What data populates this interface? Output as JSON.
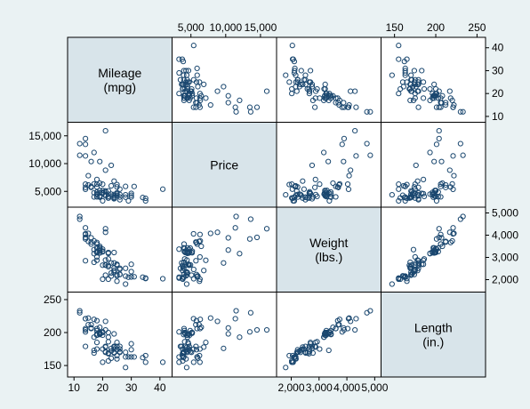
{
  "chart_data": {
    "type": "scatter",
    "variables": [
      {
        "key": "mpg",
        "label": [
          "Mileage",
          "(mpg)"
        ],
        "range": [
          9,
          43
        ],
        "ticks": [
          {
            "v": 10,
            "t": "10"
          },
          {
            "v": 20,
            "t": "20"
          },
          {
            "v": 30,
            "t": "30"
          },
          {
            "v": 40,
            "t": "40"
          }
        ]
      },
      {
        "key": "price",
        "label": [
          "Price"
        ],
        "range": [
          2800,
          16800
        ],
        "ticks": [
          {
            "v": 5000,
            "t": "5,000"
          },
          {
            "v": 10000,
            "t": "10,000"
          },
          {
            "v": 15000,
            "t": "15,000"
          }
        ]
      },
      {
        "key": "weight",
        "label": [
          "Weight",
          "(lbs.)"
        ],
        "range": [
          1600,
          5100
        ],
        "ticks": [
          {
            "v": 2000,
            "t": "2,000"
          },
          {
            "v": 3000,
            "t": "3,000"
          },
          {
            "v": 4000,
            "t": "4,000"
          },
          {
            "v": 5000,
            "t": "5,000"
          }
        ]
      },
      {
        "key": "length",
        "label": [
          "Length",
          "(in.)"
        ],
        "range": [
          138,
          256
        ],
        "ticks": [
          {
            "v": 150,
            "t": "150"
          },
          {
            "v": 200,
            "t": "200"
          },
          {
            "v": 250,
            "t": "250"
          }
        ]
      }
    ],
    "observations": [
      [
        22,
        4099,
        2930,
        186
      ],
      [
        17,
        4749,
        3350,
        173
      ],
      [
        22,
        3799,
        2640,
        168
      ],
      [
        20,
        4816,
        3250,
        196
      ],
      [
        15,
        7827,
        4080,
        222
      ],
      [
        18,
        5788,
        3670,
        218
      ],
      [
        26,
        4453,
        2230,
        170
      ],
      [
        20,
        5189,
        3280,
        200
      ],
      [
        16,
        10372,
        3880,
        207
      ],
      [
        19,
        4082,
        3400,
        200
      ],
      [
        14,
        11385,
        4330,
        221
      ],
      [
        14,
        14500,
        3900,
        204
      ],
      [
        21,
        15906,
        4290,
        204
      ],
      [
        29,
        3299,
        2110,
        163
      ],
      [
        16,
        5705,
        3690,
        212
      ],
      [
        22,
        4504,
        3180,
        193
      ],
      [
        22,
        5104,
        3220,
        200
      ],
      [
        24,
        3667,
        2750,
        179
      ],
      [
        19,
        3955,
        3430,
        197
      ],
      [
        30,
        3984,
        2120,
        163
      ],
      [
        18,
        4010,
        3600,
        206
      ],
      [
        16,
        5886,
        3600,
        206
      ],
      [
        17,
        6342,
        3740,
        220
      ],
      [
        28,
        4389,
        1800,
        147
      ],
      [
        21,
        4187,
        2650,
        179
      ],
      [
        12,
        11497,
        4840,
        233
      ],
      [
        12,
        13594,
        4720,
        230
      ],
      [
        14,
        13466,
        3830,
        201
      ],
      [
        22,
        3829,
        2580,
        169
      ],
      [
        14,
        5379,
        4060,
        221
      ],
      [
        15,
        6165,
        3720,
        212
      ],
      [
        18,
        4516,
        3430,
        198
      ],
      [
        14,
        6303,
        4030,
        206
      ],
      [
        20,
        3291,
        3370,
        201
      ],
      [
        21,
        8814,
        4130,
        217
      ],
      [
        19,
        5172,
        3210,
        199
      ],
      [
        19,
        4733,
        3200,
        198
      ],
      [
        18,
        4890,
        3420,
        203
      ],
      [
        19,
        4181,
        3280,
        199
      ],
      [
        24,
        4195,
        3220,
        198
      ],
      [
        19,
        10371,
        3330,
        198
      ],
      [
        30,
        4647,
        2690,
        183
      ],
      [
        18,
        4425,
        3250,
        196
      ],
      [
        18,
        4482,
        3210,
        196
      ],
      [
        19,
        6486,
        3500,
        208
      ],
      [
        18,
        4060,
        3260,
        203
      ],
      [
        24,
        3955,
        2520,
        169
      ],
      [
        26,
        3495,
        2510,
        179
      ],
      [
        21,
        4424,
        2880,
        178
      ],
      [
        28,
        3948,
        2510,
        170
      ],
      [
        26,
        3984,
        2240,
        171
      ],
      [
        34,
        3895,
        2110,
        162
      ],
      [
        25,
        4589,
        2690,
        185
      ],
      [
        21,
        5079,
        2200,
        170
      ],
      [
        41,
        5397,
        2040,
        155
      ],
      [
        25,
        5799,
        2230,
        174
      ],
      [
        35,
        3748,
        2050,
        165
      ],
      [
        24,
        6850,
        2410,
        178
      ],
      [
        23,
        4499,
        2300,
        172
      ],
      [
        25,
        4296,
        2170,
        160
      ],
      [
        28,
        5899,
        2160,
        163
      ],
      [
        25,
        4748,
        2650,
        179
      ],
      [
        24,
        3798,
        2410,
        175
      ],
      [
        17,
        11995,
        3170,
        193
      ],
      [
        18,
        6295,
        3020,
        175
      ],
      [
        23,
        9690,
        2750,
        176
      ],
      [
        31,
        5886,
        2130,
        163
      ],
      [
        26,
        5397,
        2460,
        175
      ],
      [
        18,
        7140,
        2870,
        185
      ],
      [
        35,
        3295,
        2070,
        155
      ],
      [
        14,
        5719,
        2850,
        179
      ],
      [
        20,
        4697,
        2650,
        175
      ],
      [
        23,
        5996,
        2160,
        161
      ],
      [
        25,
        6229,
        1930,
        165
      ],
      [
        20,
        6295,
        2020,
        155
      ],
      [
        30,
        4296,
        2360,
        174
      ],
      [
        22,
        3829,
        2020,
        157
      ],
      [
        17,
        3999,
        2780,
        169
      ],
      [
        24,
        4449,
        2330,
        170
      ],
      [
        21,
        4934,
        2660,
        171
      ]
    ]
  }
}
